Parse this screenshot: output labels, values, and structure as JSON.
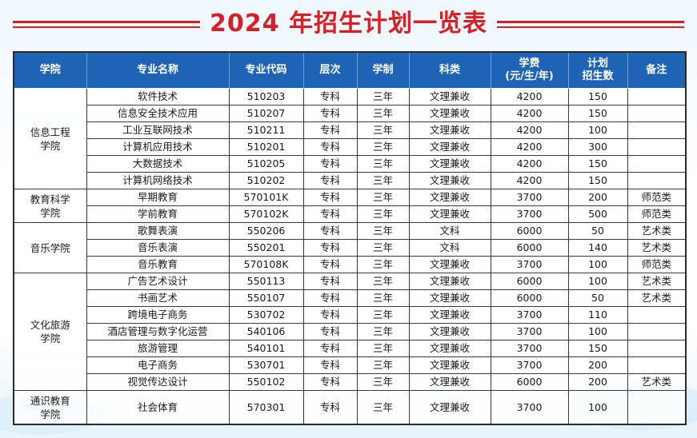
{
  "title": "2024 年招生计划一览表",
  "colors": {
    "title": "#d81f26",
    "header_bg": "#1f63b5",
    "header_text": "#ffffff"
  },
  "columns": [
    "学院",
    "专业名称",
    "专业代码",
    "层次",
    "学制",
    "科类",
    "学费\n(元/生/年)",
    "计划\n招生数",
    "备注"
  ],
  "colleges": [
    {
      "name": "信息工程\n学院",
      "rows": [
        {
          "major": "软件技术",
          "code": "510203",
          "level": "专科",
          "duration": "三年",
          "category": "文理兼收",
          "fee": "4200",
          "plan": "150",
          "note": ""
        },
        {
          "major": "信息安全技术应用",
          "code": "510207",
          "level": "专科",
          "duration": "三年",
          "category": "文理兼收",
          "fee": "4200",
          "plan": "150",
          "note": ""
        },
        {
          "major": "工业互联网技术",
          "code": "510211",
          "level": "专科",
          "duration": "三年",
          "category": "文理兼收",
          "fee": "4200",
          "plan": "100",
          "note": ""
        },
        {
          "major": "计算机应用技术",
          "code": "510201",
          "level": "专科",
          "duration": "三年",
          "category": "文理兼收",
          "fee": "4200",
          "plan": "300",
          "note": ""
        },
        {
          "major": "大数据技术",
          "code": "510205",
          "level": "专科",
          "duration": "三年",
          "category": "文理兼收",
          "fee": "4200",
          "plan": "150",
          "note": ""
        },
        {
          "major": "计算机网络技术",
          "code": "510202",
          "level": "专科",
          "duration": "三年",
          "category": "文理兼收",
          "fee": "4200",
          "plan": "150",
          "note": ""
        }
      ]
    },
    {
      "name": "教育科学\n学院",
      "rows": [
        {
          "major": "早期教育",
          "code": "570101K",
          "level": "专科",
          "duration": "三年",
          "category": "文理兼收",
          "fee": "3700",
          "plan": "200",
          "note": "师范类"
        },
        {
          "major": "学前教育",
          "code": "570102K",
          "level": "专科",
          "duration": "三年",
          "category": "文理兼收",
          "fee": "3700",
          "plan": "500",
          "note": "师范类"
        }
      ]
    },
    {
      "name": "音乐学院",
      "rows": [
        {
          "major": "歌舞表演",
          "code": "550206",
          "level": "专科",
          "duration": "三年",
          "category": "文科",
          "fee": "6000",
          "plan": "50",
          "note": "艺术类"
        },
        {
          "major": "音乐表演",
          "code": "550201",
          "level": "专科",
          "duration": "三年",
          "category": "文科",
          "fee": "6000",
          "plan": "140",
          "note": "艺术类"
        },
        {
          "major": "音乐教育",
          "code": "570108K",
          "level": "专科",
          "duration": "三年",
          "category": "文理兼收",
          "fee": "3700",
          "plan": "100",
          "note": "师范类"
        }
      ]
    },
    {
      "name": "文化旅游\n学院",
      "rows": [
        {
          "major": "广告艺术设计",
          "code": "550113",
          "level": "专科",
          "duration": "三年",
          "category": "文理兼收",
          "fee": "6000",
          "plan": "100",
          "note": "艺术类"
        },
        {
          "major": "书画艺术",
          "code": "550107",
          "level": "专科",
          "duration": "三年",
          "category": "文理兼收",
          "fee": "6000",
          "plan": "50",
          "note": "艺术类"
        },
        {
          "major": "跨境电子商务",
          "code": "530702",
          "level": "专科",
          "duration": "三年",
          "category": "文理兼收",
          "fee": "3700",
          "plan": "110",
          "note": ""
        },
        {
          "major": "酒店管理与数字化运营",
          "code": "540106",
          "level": "专科",
          "duration": "三年",
          "category": "文理兼收",
          "fee": "3700",
          "plan": "100",
          "note": ""
        },
        {
          "major": "旅游管理",
          "code": "540101",
          "level": "专科",
          "duration": "三年",
          "category": "文理兼收",
          "fee": "3700",
          "plan": "150",
          "note": ""
        },
        {
          "major": "电子商务",
          "code": "530701",
          "level": "专科",
          "duration": "三年",
          "category": "文理兼收",
          "fee": "3700",
          "plan": "200",
          "note": ""
        },
        {
          "major": "视觉传达设计",
          "code": "550102",
          "level": "专科",
          "duration": "三年",
          "category": "文理兼收",
          "fee": "6000",
          "plan": "200",
          "note": "艺术类"
        }
      ]
    },
    {
      "name": "通识教育\n学院",
      "tall": true,
      "rows": [
        {
          "major": "社会体育",
          "code": "570301",
          "level": "专科",
          "duration": "三年",
          "category": "文理兼收",
          "fee": "3700",
          "plan": "100",
          "note": ""
        }
      ]
    }
  ]
}
